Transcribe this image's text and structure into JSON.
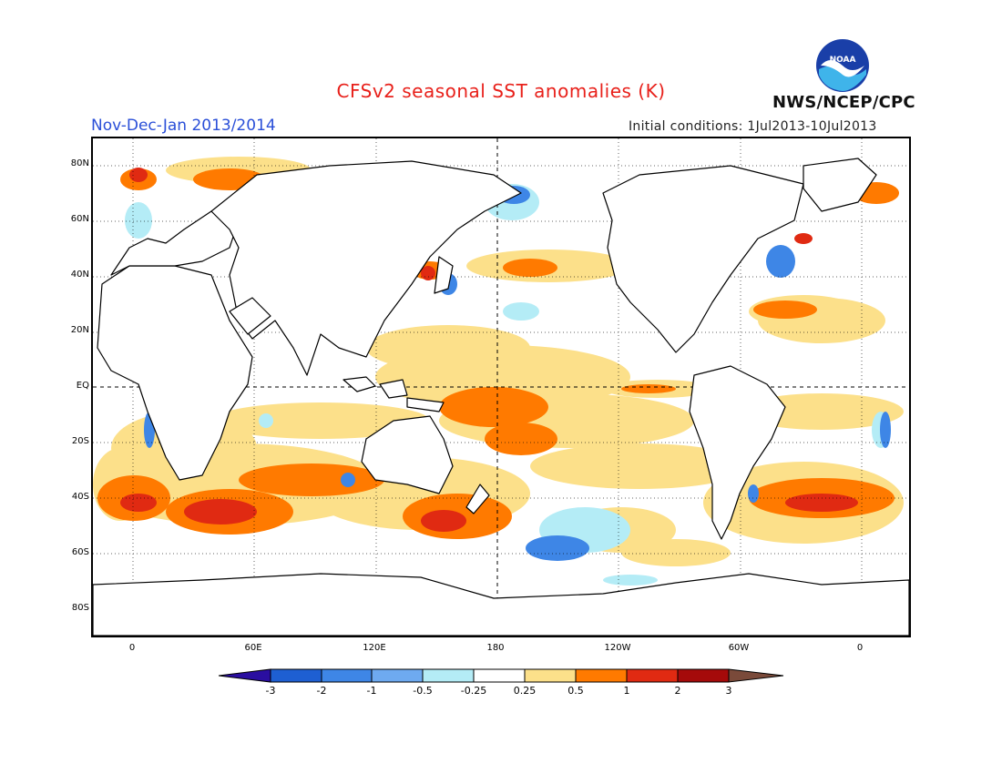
{
  "header": {
    "title": "CFSv2 seasonal SST anomalies (K)",
    "season": "Nov-Dec-Jan 2013/2014",
    "initial_conditions": "Initial conditions: 1Jul2013-10Jul2013",
    "agency": "NWS/NCEP/CPC",
    "logo_text": "NOAA"
  },
  "map": {
    "lat_labels": [
      "80N",
      "60N",
      "40N",
      "20N",
      "EQ",
      "20S",
      "40S",
      "60S",
      "80S"
    ],
    "lon_labels": [
      "0",
      "60E",
      "120E",
      "180",
      "120W",
      "60W",
      "0"
    ],
    "reference_lines": [
      "EQ",
      "180"
    ]
  },
  "colorbar": {
    "labels": [
      "-3",
      "-2",
      "-1",
      "-0.5",
      "-0.25",
      "0.25",
      "0.5",
      "1",
      "2",
      "3"
    ],
    "colors": [
      "#2a0ea0",
      "#1e5fd2",
      "#3e86e6",
      "#6eaaf0",
      "#b4ecf6",
      "#ffffff",
      "#fce08a",
      "#ff7a00",
      "#e02a12",
      "#a50a0a",
      "#7a4a3a"
    ]
  }
}
